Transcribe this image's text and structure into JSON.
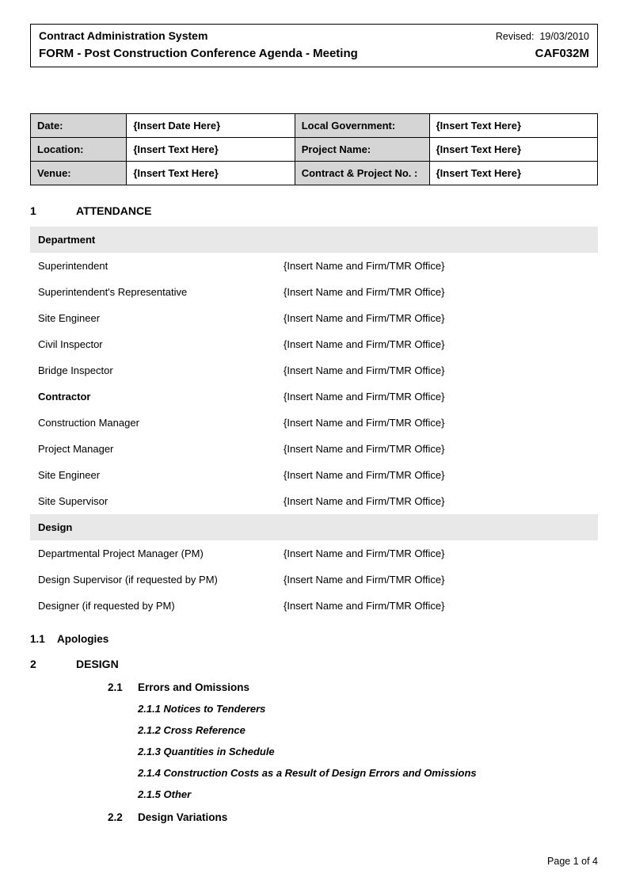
{
  "header": {
    "system": "Contract Administration System",
    "revised_label": "Revised:",
    "revised_date": "19/03/2010",
    "form_title": "FORM - Post Construction Conference Agenda - Meeting",
    "form_code": "CAF032M"
  },
  "info": {
    "rows": [
      {
        "label1": "Date:",
        "value1": "{Insert Date Here}",
        "label2": "Local Government:",
        "value2": "{Insert Text Here}"
      },
      {
        "label1": "Location:",
        "value1": "{Insert Text Here}",
        "label2": "Project Name:",
        "value2": "{Insert Text Here}"
      },
      {
        "label1": "Venue:",
        "value1": "{Insert Text Here}",
        "label2": "Contract & Project No. :",
        "value2": "{Insert Text Here}"
      }
    ]
  },
  "section1": {
    "num": "1",
    "title": "ATTENDANCE",
    "group1_header": "Department",
    "group1_rows": [
      {
        "role": "Superintendent",
        "name": "{Insert Name and Firm/TMR Office}",
        "bold": false
      },
      {
        "role": "Superintendent's Representative",
        "name": "{Insert Name and Firm/TMR Office}",
        "bold": false
      },
      {
        "role": "Site Engineer",
        "name": "{Insert Name and Firm/TMR Office}",
        "bold": false
      },
      {
        "role": "Civil Inspector",
        "name": "{Insert Name and Firm/TMR Office}",
        "bold": false
      },
      {
        "role": "Bridge Inspector",
        "name": "{Insert Name and Firm/TMR Office}",
        "bold": false
      },
      {
        "role": "Contractor",
        "name": "{Insert Name and Firm/TMR Office}",
        "bold": true
      },
      {
        "role": "Construction Manager",
        "name": "{Insert Name and Firm/TMR Office}",
        "bold": false
      },
      {
        "role": "Project Manager",
        "name": "{Insert Name and Firm/TMR Office}",
        "bold": false
      },
      {
        "role": "Site Engineer",
        "name": "{Insert Name and Firm/TMR Office}",
        "bold": false
      },
      {
        "role": "Site Supervisor",
        "name": "{Insert Name and Firm/TMR Office}",
        "bold": false
      }
    ],
    "group2_header": "Design",
    "group2_rows": [
      {
        "role": "Departmental Project Manager (PM)",
        "name": "{Insert Name and Firm/TMR Office}"
      },
      {
        "role": "Design Supervisor (if requested by PM)",
        "name": "{Insert Name and Firm/TMR Office}"
      },
      {
        "role": "Designer (if requested by PM)",
        "name": "{Insert Name and Firm/TMR Office}"
      }
    ],
    "sub_num": "1.1",
    "sub_title": "Apologies"
  },
  "section2": {
    "num": "2",
    "title": "DESIGN",
    "sub_21_num": "2.1",
    "sub_21_title": "Errors and Omissions",
    "items_21": [
      "2.1.1 Notices to Tenderers",
      "2.1.2 Cross Reference",
      "2.1.3 Quantities in Schedule",
      "2.1.4 Construction Costs as a Result of Design Errors and Omissions",
      "2.1.5 Other"
    ],
    "sub_22_num": "2.2",
    "sub_22_title": "Design Variations"
  },
  "footer": {
    "page": "Page 1 of 4"
  }
}
